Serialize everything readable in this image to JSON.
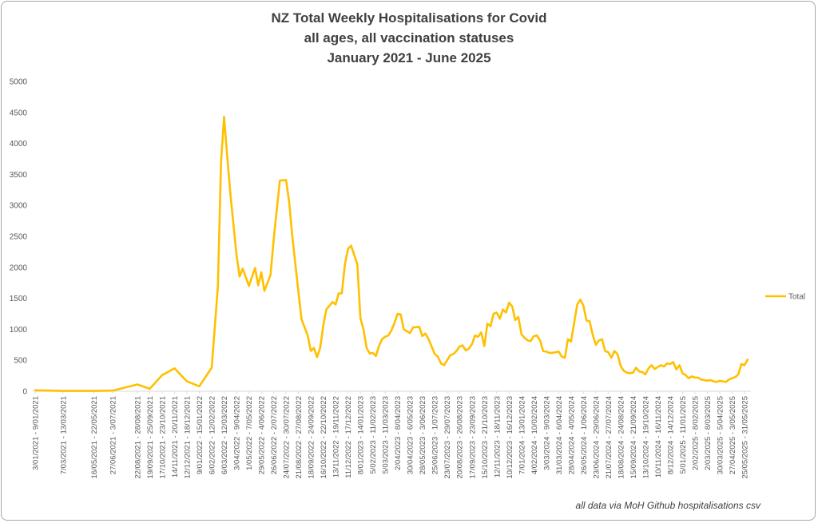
{
  "title_lines": [
    "NZ Total Weekly Hospitalisations for Covid",
    "all ages, all vaccination statuses",
    "January 2021 - June 2025"
  ],
  "source_note": "all data via MoH Github hospitalisations csv",
  "colors": {
    "series": "#FFC000",
    "axis": "#d9d9d9",
    "text": "#595959"
  },
  "chart_data": {
    "type": "line",
    "title": "NZ Total Weekly Hospitalisations for Covid all ages, all vaccination statuses January 2021 - June 2025",
    "xlabel": "",
    "ylabel": "",
    "ylim": [
      0,
      5000
    ],
    "y_ticks": [
      "5000",
      "4500",
      "4000",
      "3500",
      "3000",
      "2500",
      "2000",
      "1500",
      "1000",
      "500",
      "0"
    ],
    "grid": false,
    "legend_position": "right",
    "x_tick_labels": [
      "3/01/2021 - 9/01/2021",
      "7/03/2021 - 13/03/2021",
      "16/05/2021 - 22/05/2021",
      "27/06/2021 - 3/07/2021",
      "22/08/2021 - 28/08/2021",
      "19/09/2021 - 25/09/2021",
      "17/10/2021 - 23/10/2021",
      "14/11/2021 - 20/11/2021",
      "12/12/2021 - 18/12/2021",
      "9/01/2022 - 15/01/2022",
      "6/02/2022 - 12/02/2022",
      "6/03/2022 - 12/03/2022",
      "3/04/2022 - 9/04/2022",
      "1/05/2022 - 7/05/2022",
      "29/05/2022 - 4/06/2022",
      "26/06/2022 - 2/07/2022",
      "24/07/2022 - 30/07/2022",
      "21/08/2022 - 27/08/2022",
      "18/09/2022 - 24/09/2022",
      "16/10/2022 - 22/10/2022",
      "13/11/2022 - 19/11/2022",
      "11/12/2022 - 17/12/2022",
      "8/01/2023 - 14/01/2023",
      "5/02/2023 - 11/02/2023",
      "5/03/2023 - 11/03/2023",
      "2/04/2023 - 8/04/2023",
      "30/04/2023 - 6/05/2023",
      "28/05/2023 - 3/06/2023",
      "25/06/2023 - 1/07/2023",
      "23/07/2023 - 29/07/2023",
      "20/08/2023 - 26/08/2023",
      "17/09/2023 - 23/09/2023",
      "15/10/2023 - 21/10/2023",
      "12/11/2023 - 18/11/2023",
      "10/12/2023 - 16/12/2023",
      "7/01/2024 - 13/01/2024",
      "4/02/2024 - 10/02/2024",
      "3/03/2024 - 9/03/2024",
      "31/03/2024 - 6/04/2024",
      "28/04/2024 - 4/05/2024",
      "26/05/2024 - 1/06/2024",
      "23/06/2024 - 29/06/2024",
      "21/07/2024 - 27/07/2024",
      "18/08/2024 - 24/08/2024",
      "15/09/2024 - 21/09/2024",
      "13/10/2024 - 19/10/2024",
      "10/11/2024 - 16/11/2024",
      "8/12/2024 - 14/12/2024",
      "5/01/2025 - 11/01/2025",
      "2/02/2025 - 8/02/2025",
      "2/03/2025 - 8/03/2025",
      "30/03/2025 - 5/04/2025",
      "27/04/2025 - 3/05/2025",
      "25/05/2025 - 31/05/2025"
    ],
    "series": [
      {
        "name": "Total",
        "color": "#FFC000",
        "points": [
          [
            "3/01/2021",
            15
          ],
          [
            "7/03/2021",
            5
          ],
          [
            "16/05/2021",
            5
          ],
          [
            "27/06/2021",
            10
          ],
          [
            "22/08/2021",
            110
          ],
          [
            "19/09/2021",
            40
          ],
          [
            "17/10/2021",
            260
          ],
          [
            "14/11/2021",
            370
          ],
          [
            "12/12/2021",
            160
          ],
          [
            "9/01/2022",
            80
          ],
          [
            "6/02/2022",
            380
          ],
          [
            "20/02/2022",
            1700
          ],
          [
            "27/02/2022",
            3700
          ],
          [
            "6/03/2022",
            4430
          ],
          [
            "13/03/2022",
            3800
          ],
          [
            "20/03/2022",
            3200
          ],
          [
            "3/04/2022",
            2200
          ],
          [
            "10/04/2022",
            1850
          ],
          [
            "17/04/2022",
            1980
          ],
          [
            "1/05/2022",
            1700
          ],
          [
            "15/05/2022",
            1990
          ],
          [
            "22/05/2022",
            1710
          ],
          [
            "29/05/2022",
            1920
          ],
          [
            "5/06/2022",
            1620
          ],
          [
            "19/06/2022",
            1880
          ],
          [
            "26/06/2022",
            2450
          ],
          [
            "10/07/2022",
            3400
          ],
          [
            "24/07/2022",
            3410
          ],
          [
            "31/07/2022",
            3050
          ],
          [
            "7/08/2022",
            2500
          ],
          [
            "21/08/2022",
            1600
          ],
          [
            "28/08/2022",
            1160
          ],
          [
            "11/09/2022",
            900
          ],
          [
            "18/09/2022",
            650
          ],
          [
            "25/09/2022",
            700
          ],
          [
            "2/10/2022",
            550
          ],
          [
            "9/10/2022",
            700
          ],
          [
            "16/10/2022",
            1050
          ],
          [
            "23/10/2022",
            1320
          ],
          [
            "6/11/2022",
            1440
          ],
          [
            "13/11/2022",
            1400
          ],
          [
            "20/11/2022",
            1580
          ],
          [
            "27/11/2022",
            1580
          ],
          [
            "4/12/2022",
            2050
          ],
          [
            "11/12/2022",
            2300
          ],
          [
            "18/12/2022",
            2350
          ],
          [
            "1/01/2023",
            2050
          ],
          [
            "8/01/2023",
            1180
          ],
          [
            "15/01/2023",
            1000
          ],
          [
            "22/01/2023",
            700
          ],
          [
            "29/01/2023",
            610
          ],
          [
            "5/02/2023",
            620
          ],
          [
            "12/02/2023",
            570
          ],
          [
            "19/02/2023",
            730
          ],
          [
            "26/02/2023",
            840
          ],
          [
            "5/03/2023",
            880
          ],
          [
            "12/03/2023",
            900
          ],
          [
            "19/03/2023",
            980
          ],
          [
            "26/03/2023",
            1100
          ],
          [
            "2/04/2023",
            1250
          ],
          [
            "9/04/2023",
            1240
          ],
          [
            "16/04/2023",
            1000
          ],
          [
            "23/04/2023",
            970
          ],
          [
            "30/04/2023",
            940
          ],
          [
            "7/05/2023",
            1030
          ],
          [
            "21/05/2023",
            1040
          ],
          [
            "28/05/2023",
            890
          ],
          [
            "4/06/2023",
            930
          ],
          [
            "11/06/2023",
            840
          ],
          [
            "25/06/2023",
            600
          ],
          [
            "2/07/2023",
            560
          ],
          [
            "9/07/2023",
            450
          ],
          [
            "16/07/2023",
            420
          ],
          [
            "23/07/2023",
            500
          ],
          [
            "30/07/2023",
            580
          ],
          [
            "6/08/2023",
            600
          ],
          [
            "13/08/2023",
            650
          ],
          [
            "20/08/2023",
            720
          ],
          [
            "27/08/2023",
            740
          ],
          [
            "3/09/2023",
            660
          ],
          [
            "10/09/2023",
            690
          ],
          [
            "17/09/2023",
            760
          ],
          [
            "24/09/2023",
            900
          ],
          [
            "1/10/2023",
            880
          ],
          [
            "8/10/2023",
            950
          ],
          [
            "15/10/2023",
            730
          ],
          [
            "22/10/2023",
            1090
          ],
          [
            "29/10/2023",
            1050
          ],
          [
            "5/11/2023",
            1250
          ],
          [
            "12/11/2023",
            1270
          ],
          [
            "19/11/2023",
            1170
          ],
          [
            "26/11/2023",
            1320
          ],
          [
            "3/12/2023",
            1270
          ],
          [
            "10/12/2023",
            1430
          ],
          [
            "17/12/2023",
            1370
          ],
          [
            "24/12/2023",
            1150
          ],
          [
            "31/12/2023",
            1200
          ],
          [
            "7/01/2024",
            920
          ],
          [
            "14/01/2024",
            860
          ],
          [
            "21/01/2024",
            820
          ],
          [
            "28/01/2024",
            810
          ],
          [
            "4/02/2024",
            890
          ],
          [
            "11/02/2024",
            900
          ],
          [
            "18/02/2024",
            820
          ],
          [
            "25/02/2024",
            650
          ],
          [
            "3/03/2024",
            640
          ],
          [
            "10/03/2024",
            620
          ],
          [
            "17/03/2024",
            620
          ],
          [
            "24/03/2024",
            630
          ],
          [
            "31/03/2024",
            640
          ],
          [
            "7/04/2024",
            560
          ],
          [
            "14/04/2024",
            540
          ],
          [
            "21/04/2024",
            840
          ],
          [
            "28/04/2024",
            800
          ],
          [
            "5/05/2024",
            1100
          ],
          [
            "12/05/2024",
            1400
          ],
          [
            "19/05/2024",
            1480
          ],
          [
            "26/05/2024",
            1380
          ],
          [
            "2/06/2024",
            1140
          ],
          [
            "9/06/2024",
            1130
          ],
          [
            "16/06/2024",
            910
          ],
          [
            "23/06/2024",
            750
          ],
          [
            "30/06/2024",
            820
          ],
          [
            "7/07/2024",
            840
          ],
          [
            "14/07/2024",
            650
          ],
          [
            "21/07/2024",
            630
          ],
          [
            "28/07/2024",
            540
          ],
          [
            "4/08/2024",
            650
          ],
          [
            "11/08/2024",
            600
          ],
          [
            "18/08/2024",
            410
          ],
          [
            "25/08/2024",
            330
          ],
          [
            "1/09/2024",
            300
          ],
          [
            "8/09/2024",
            290
          ],
          [
            "15/09/2024",
            300
          ],
          [
            "22/09/2024",
            380
          ],
          [
            "29/09/2024",
            320
          ],
          [
            "6/10/2024",
            310
          ],
          [
            "13/10/2024",
            270
          ],
          [
            "20/10/2024",
            370
          ],
          [
            "27/10/2024",
            420
          ],
          [
            "3/11/2024",
            360
          ],
          [
            "10/11/2024",
            390
          ],
          [
            "17/11/2024",
            420
          ],
          [
            "24/11/2024",
            400
          ],
          [
            "1/12/2024",
            450
          ],
          [
            "8/12/2024",
            440
          ],
          [
            "15/12/2024",
            470
          ],
          [
            "22/12/2024",
            350
          ],
          [
            "29/12/2024",
            420
          ],
          [
            "5/01/2025",
            290
          ],
          [
            "12/01/2025",
            260
          ],
          [
            "19/01/2025",
            210
          ],
          [
            "26/01/2025",
            240
          ],
          [
            "2/02/2025",
            220
          ],
          [
            "9/02/2025",
            220
          ],
          [
            "16/02/2025",
            190
          ],
          [
            "23/02/2025",
            180
          ],
          [
            "2/03/2025",
            170
          ],
          [
            "9/03/2025",
            180
          ],
          [
            "16/03/2025",
            160
          ],
          [
            "23/03/2025",
            150
          ],
          [
            "30/03/2025",
            170
          ],
          [
            "6/04/2025",
            160
          ],
          [
            "13/04/2025",
            150
          ],
          [
            "20/04/2025",
            190
          ],
          [
            "27/04/2025",
            210
          ],
          [
            "4/05/2025",
            230
          ],
          [
            "11/05/2025",
            270
          ],
          [
            "18/05/2025",
            440
          ],
          [
            "25/05/2025",
            420
          ],
          [
            "1/06/2025",
            510
          ]
        ]
      }
    ]
  }
}
